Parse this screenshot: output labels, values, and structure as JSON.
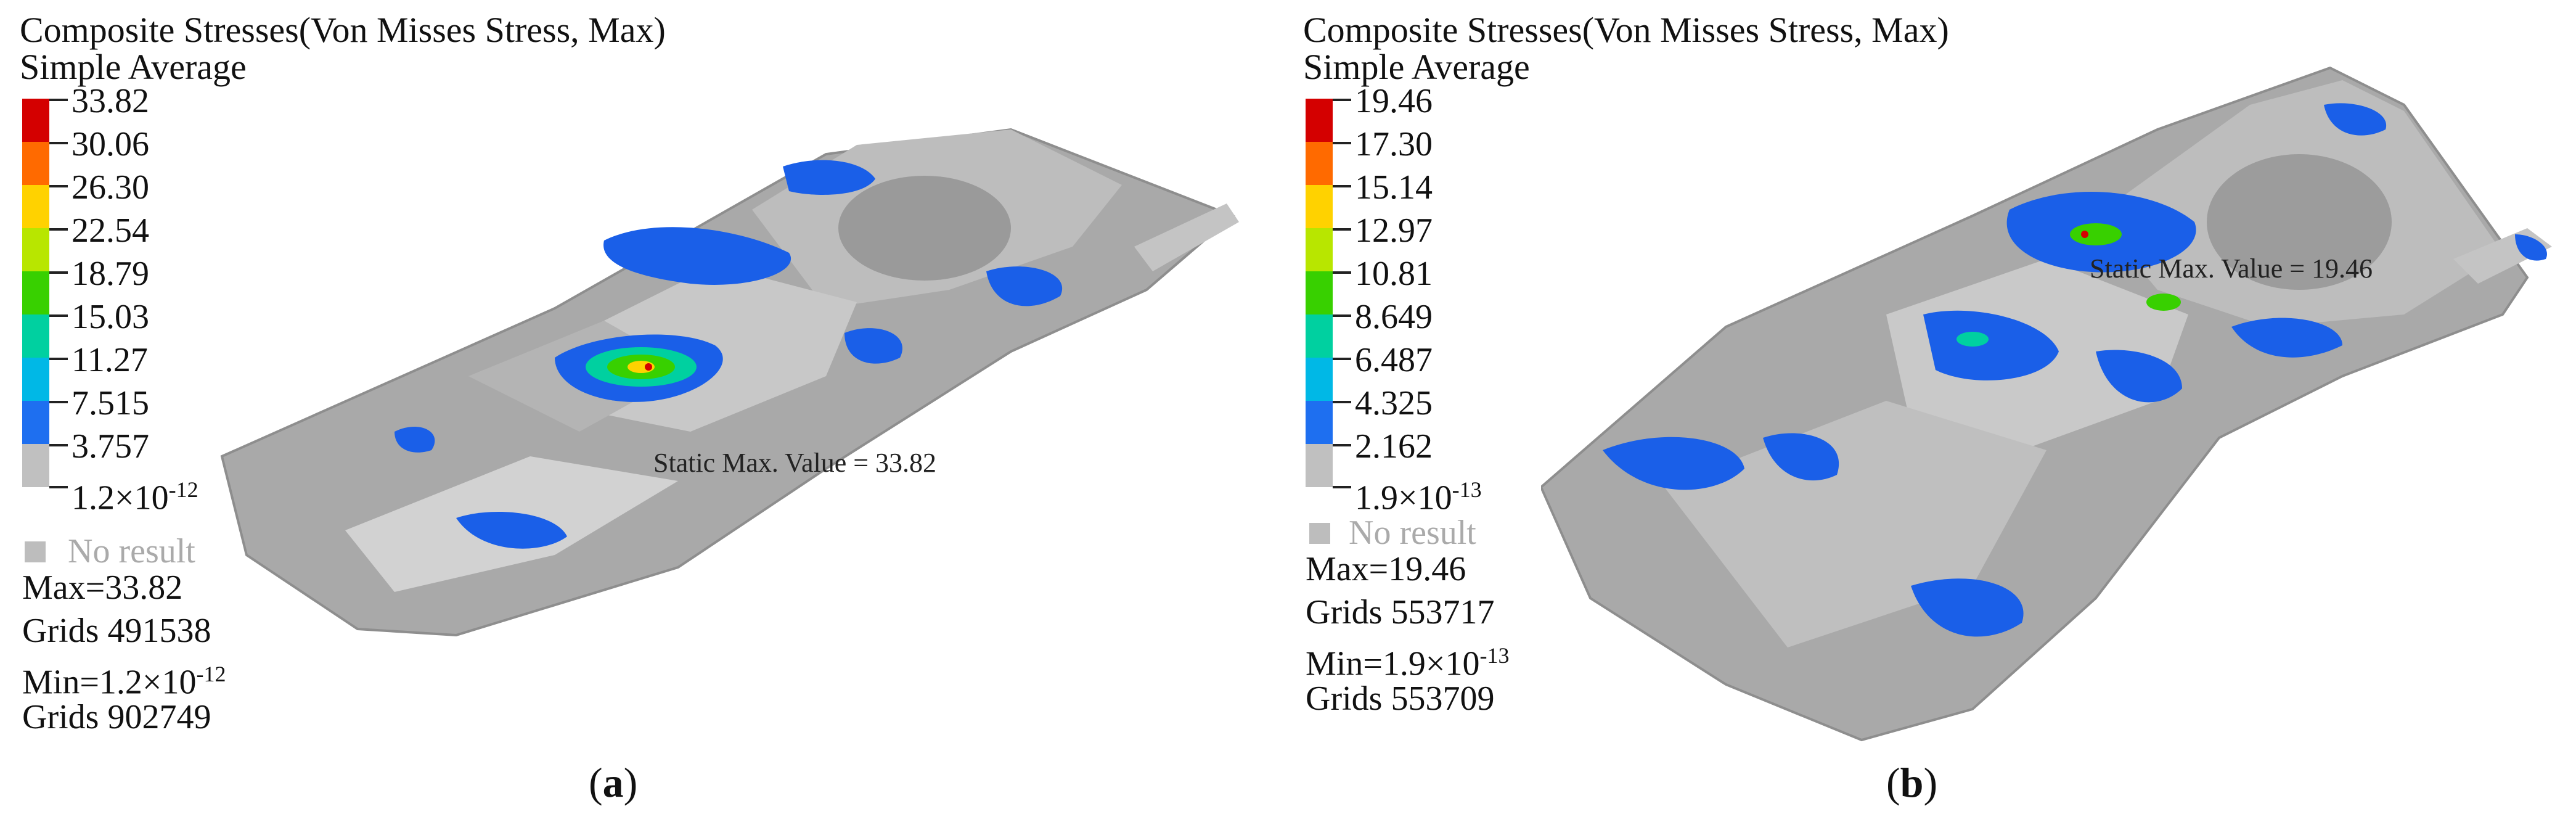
{
  "colors": {
    "scale": [
      "#d40000",
      "#ff6a00",
      "#ffd200",
      "#b8e600",
      "#38d000",
      "#00d0a0",
      "#00b8e6",
      "#1e6ff0",
      "#c0c0c0"
    ],
    "mesh_gray": "#a8a8a8",
    "mesh_light": "#cfcfcf",
    "stress_blue": "#1a5fe8"
  },
  "panels": [
    {
      "title": "Composite Stresses(Von Misses Stress, Max)",
      "subtitle": "Simple Average",
      "legend": [
        "33.82",
        "30.06",
        "26.30",
        "22.54",
        "18.79",
        "15.03",
        "11.27",
        "7.515",
        "3.757",
        "1.2×10-12"
      ],
      "legend_min": {
        "base": "1.2×10",
        "exp": "-12"
      },
      "no_result": "No result",
      "max_label": "Max=33.82",
      "max_grids": "Grids 491538",
      "min_label": {
        "base": "Min=1.2×10",
        "exp": "-12"
      },
      "min_grids": "Grids 902749",
      "annotation": "Static Max. Value = 33.82",
      "caption_letter": "a"
    },
    {
      "title": "Composite Stresses(Von Misses Stress, Max)",
      "subtitle": "Simple Average",
      "legend": [
        "19.46",
        "17.30",
        "15.14",
        "12.97",
        "10.81",
        "8.649",
        "6.487",
        "4.325",
        "2.162",
        "1.9×10-13"
      ],
      "legend_min": {
        "base": "1.9×10",
        "exp": "-13"
      },
      "no_result": "No result",
      "max_label": "Max=19.46",
      "max_grids": "Grids 553717",
      "min_label": {
        "base": "Min=1.9×10",
        "exp": "-13"
      },
      "min_grids": "Grids 553709",
      "annotation": "Static Max. Value = 19.46",
      "caption_letter": "b"
    }
  ]
}
